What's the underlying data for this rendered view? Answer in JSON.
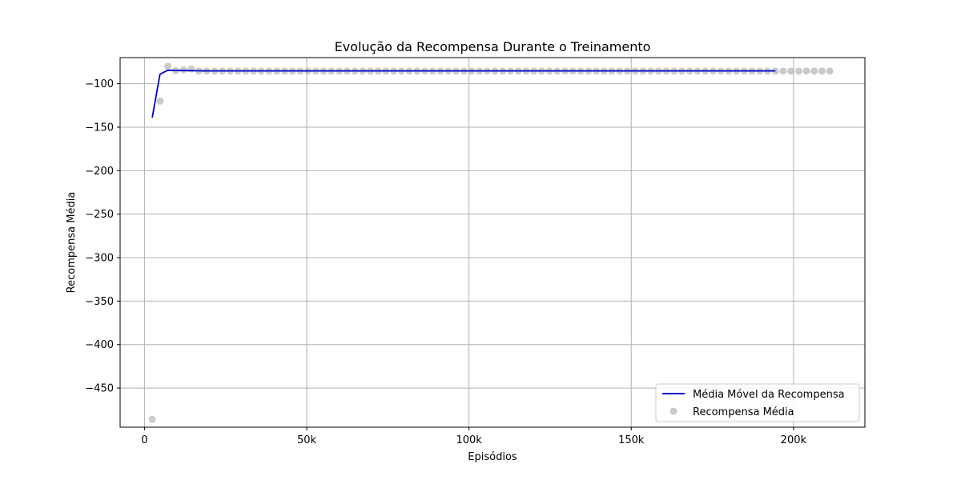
{
  "chart_data": {
    "type": "line",
    "title": "Evolução da Recompensa Durante o Treinamento",
    "xlabel": "Episódios",
    "ylabel": "Recompensa Média",
    "xlim": [
      -7500,
      222000
    ],
    "ylim": [
      -495,
      -70
    ],
    "x_ticks": [
      0,
      50000,
      100000,
      150000,
      200000
    ],
    "x_tick_labels": [
      "0",
      "50k",
      "100k",
      "150k",
      "200k"
    ],
    "y_ticks": [
      -450,
      -400,
      -350,
      -300,
      -250,
      -200,
      -150,
      -100
    ],
    "y_tick_labels": [
      "−450",
      "−400",
      "−350",
      "−300",
      "−250",
      "−200",
      "−150",
      "−100"
    ],
    "grid": true,
    "legend_position": "lower-right",
    "colors": {
      "moving_average": "#0000cc",
      "scatter": "#a9a9a9",
      "grid": "#b0b0b0"
    },
    "series": [
      {
        "name": "Média Móvel da Recompensa",
        "kind": "line",
        "x": [
          2400,
          4800,
          7200,
          9600,
          12000,
          14400,
          16800,
          19200,
          21600,
          24000,
          26400,
          28800,
          31200,
          33600,
          36000,
          38400,
          40800,
          43200,
          45600,
          48000,
          50400,
          52800,
          55200,
          57600,
          60000,
          62400,
          64800,
          67200,
          69600,
          72000,
          74400,
          76800,
          79200,
          81600,
          84000,
          86400,
          88800,
          91200,
          93600,
          96000,
          98400,
          100800,
          103200,
          105600,
          108000,
          110400,
          112800,
          115200,
          117600,
          120000,
          122400,
          124800,
          127200,
          129600,
          132000,
          134400,
          136800,
          139200,
          141600,
          144000,
          146400,
          148800,
          151200,
          153600,
          156000,
          158400,
          160800,
          163200,
          165600,
          168000,
          170400,
          172800,
          175200,
          177600,
          180000,
          182400,
          184800,
          187200,
          189600,
          192000,
          194400
        ],
        "y": [
          -139,
          -89,
          -84.5,
          -84.8,
          -84.9,
          -85,
          -85.2,
          -85.3,
          -85.3,
          -85.3,
          -85.3,
          -85.3,
          -85.3,
          -85.3,
          -85.3,
          -85.3,
          -85.3,
          -85.3,
          -85.3,
          -85.3,
          -85.3,
          -85.3,
          -85.3,
          -85.3,
          -85.3,
          -85.3,
          -85.3,
          -85.3,
          -85.3,
          -85.3,
          -85.3,
          -85.3,
          -85.3,
          -85.3,
          -85.3,
          -85.3,
          -85.3,
          -85.3,
          -85.3,
          -85.3,
          -85.3,
          -85.3,
          -85.3,
          -85.3,
          -85.3,
          -85.3,
          -85.3,
          -85.3,
          -85.3,
          -85.3,
          -85.3,
          -85.3,
          -85.3,
          -85.3,
          -85.3,
          -85.3,
          -85.3,
          -85.3,
          -85.3,
          -85.3,
          -85.3,
          -85.3,
          -85.3,
          -85.3,
          -85.3,
          -85.3,
          -85.3,
          -85.3,
          -85.3,
          -85.3,
          -85.3,
          -85.3,
          -85.3,
          -85.3,
          -85.3,
          -85.3,
          -85.3,
          -85.3,
          -85.3,
          -85.3,
          -85.3
        ]
      },
      {
        "name": "Recompensa Média",
        "kind": "scatter",
        "x": [
          2400,
          4800,
          7200,
          9600,
          12000,
          14400,
          16800,
          19200,
          21600,
          24000,
          26400,
          28800,
          31200,
          33600,
          36000,
          38400,
          40800,
          43200,
          45600,
          48000,
          50400,
          52800,
          55200,
          57600,
          60000,
          62400,
          64800,
          67200,
          69600,
          72000,
          74400,
          76800,
          79200,
          81600,
          84000,
          86400,
          88800,
          91200,
          93600,
          96000,
          98400,
          100800,
          103200,
          105600,
          108000,
          110400,
          112800,
          115200,
          117600,
          120000,
          122400,
          124800,
          127200,
          129600,
          132000,
          134400,
          136800,
          139200,
          141600,
          144000,
          146400,
          148800,
          151200,
          153600,
          156000,
          158400,
          160800,
          163200,
          165600,
          168000,
          170400,
          172800,
          175200,
          177600,
          180000,
          182400,
          184800,
          187200,
          189600,
          192000,
          194400,
          196800,
          199200,
          201600,
          204000,
          206400,
          208800,
          211200
        ],
        "y": [
          -486,
          -120,
          -80,
          -85,
          -84,
          -83,
          -85.5,
          -85.5,
          -85.5,
          -85.5,
          -85.5,
          -85.5,
          -85.5,
          -85.5,
          -85.5,
          -85.5,
          -85.5,
          -85.5,
          -85.5,
          -85.5,
          -85.5,
          -85.5,
          -85.5,
          -85.5,
          -85.5,
          -85.5,
          -85.5,
          -85.5,
          -85.5,
          -85.5,
          -85.5,
          -85.5,
          -85.5,
          -85.5,
          -85.5,
          -85.5,
          -85.5,
          -85.5,
          -85.5,
          -85.5,
          -85.5,
          -85.5,
          -85.5,
          -85.5,
          -85.5,
          -85.5,
          -85.5,
          -85.5,
          -85.5,
          -85.5,
          -85.5,
          -85.5,
          -85.5,
          -85.5,
          -85.5,
          -85.5,
          -85.5,
          -85.5,
          -85.5,
          -85.5,
          -85.5,
          -85.5,
          -85.5,
          -85.5,
          -85.5,
          -85.5,
          -85.5,
          -85.5,
          -85.5,
          -85.5,
          -85.5,
          -85.5,
          -85.5,
          -85.5,
          -85.5,
          -85.5,
          -85.5,
          -85.5,
          -85.5,
          -85.5,
          -85.5,
          -85.5,
          -85.5,
          -85.5,
          -85.5,
          -85.5,
          -85.5,
          -85.5
        ]
      }
    ]
  }
}
